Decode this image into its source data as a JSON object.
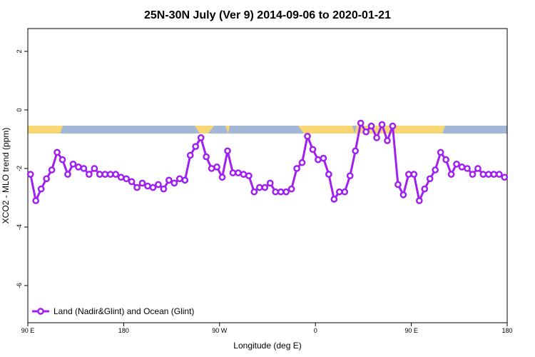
{
  "chart_data": {
    "type": "line",
    "title": "25N-30N July (Ver 9)   2014-09-06 to 2020-01-21",
    "xlabel": "Longitude (deg E)",
    "ylabel": "XCO2 - MLO trend (ppm)",
    "xlim": [
      90,
      540
    ],
    "xticks": [
      {
        "value": 90,
        "label": "90 E"
      },
      180,
      {
        "value": 270,
        "label": "90 W"
      },
      {
        "value": 360,
        "label": "0"
      },
      {
        "value": 450,
        "label": "90 E"
      },
      {
        "value": 540,
        "label": "180"
      }
    ],
    "ylim": [
      -7.27,
      2.78
    ],
    "yticks": [
      2,
      0,
      -2,
      -4,
      -6
    ],
    "legend": "bottom-left",
    "x": [
      92.5,
      97.5,
      102.5,
      107.5,
      112.5,
      117.5,
      122.5,
      127.5,
      132.5,
      137.5,
      142.5,
      147.5,
      152.5,
      157.5,
      162.5,
      167.5,
      172.5,
      177.5,
      182.5,
      187.5,
      192.5,
      197.5,
      202.5,
      207.5,
      212.5,
      217.5,
      222.5,
      227.5,
      232.5,
      237.5,
      242.5,
      247.5,
      252.5,
      257.5,
      262.5,
      267.5,
      272.5,
      277.5,
      282.5,
      287.5,
      292.5,
      297.5,
      302.5,
      307.5,
      312.5,
      317.5,
      322.5,
      327.5,
      332.5,
      337.5,
      342.5,
      347.5,
      352.5,
      357.5,
      362.5,
      367.5,
      372.5,
      377.5,
      382.5,
      387.5,
      392.5,
      397.5,
      402.5,
      407.5,
      412.5,
      417.5,
      422.5,
      427.5,
      432.5,
      437.5,
      442.5,
      447.5,
      452.5,
      457.5,
      462.5,
      467.5,
      472.5,
      477.5,
      482.5,
      487.5,
      492.5,
      497.5,
      502.5,
      507.5,
      512.5,
      517.5,
      522.5,
      527.5,
      532.5,
      537.5
    ],
    "series": [
      {
        "name": "Land (Nadir&Glint) and Ocean (Glint)",
        "color": "#a020f0",
        "values": [
          -2.2,
          -3.1,
          -2.7,
          -2.35,
          -2.05,
          -1.45,
          -1.7,
          -2.2,
          -1.85,
          -1.95,
          -2.0,
          -2.2,
          -2.0,
          -2.2,
          -2.2,
          -2.2,
          -2.2,
          -2.3,
          -2.35,
          -2.45,
          -2.65,
          -2.5,
          -2.6,
          -2.65,
          -2.55,
          -2.7,
          -2.4,
          -2.5,
          -2.35,
          -2.4,
          -1.55,
          -1.25,
          -0.95,
          -1.6,
          -2.0,
          -1.95,
          -2.3,
          -1.4,
          -2.15,
          -2.15,
          -2.2,
          -2.25,
          -2.8,
          -2.65,
          -2.65,
          -2.5,
          -2.8,
          -2.8,
          -2.8,
          -2.7,
          -2.0,
          -1.8,
          -0.9,
          -1.35,
          -1.7,
          -1.65,
          -2.2,
          -3.05,
          -2.8,
          -2.8,
          -2.25,
          -1.4,
          -0.45,
          -0.75,
          -0.55,
          -0.95,
          -0.5,
          -1.05,
          -0.55,
          -2.55,
          -2.9,
          -2.2,
          -2.2,
          -3.1,
          -2.7,
          -2.35,
          -2.05,
          -1.45,
          -1.7,
          -2.2,
          -1.85,
          -1.95,
          -2.0,
          -2.2,
          -2.0,
          -2.2,
          -2.2,
          -2.2,
          -2.2,
          -2.3
        ]
      }
    ]
  }
}
